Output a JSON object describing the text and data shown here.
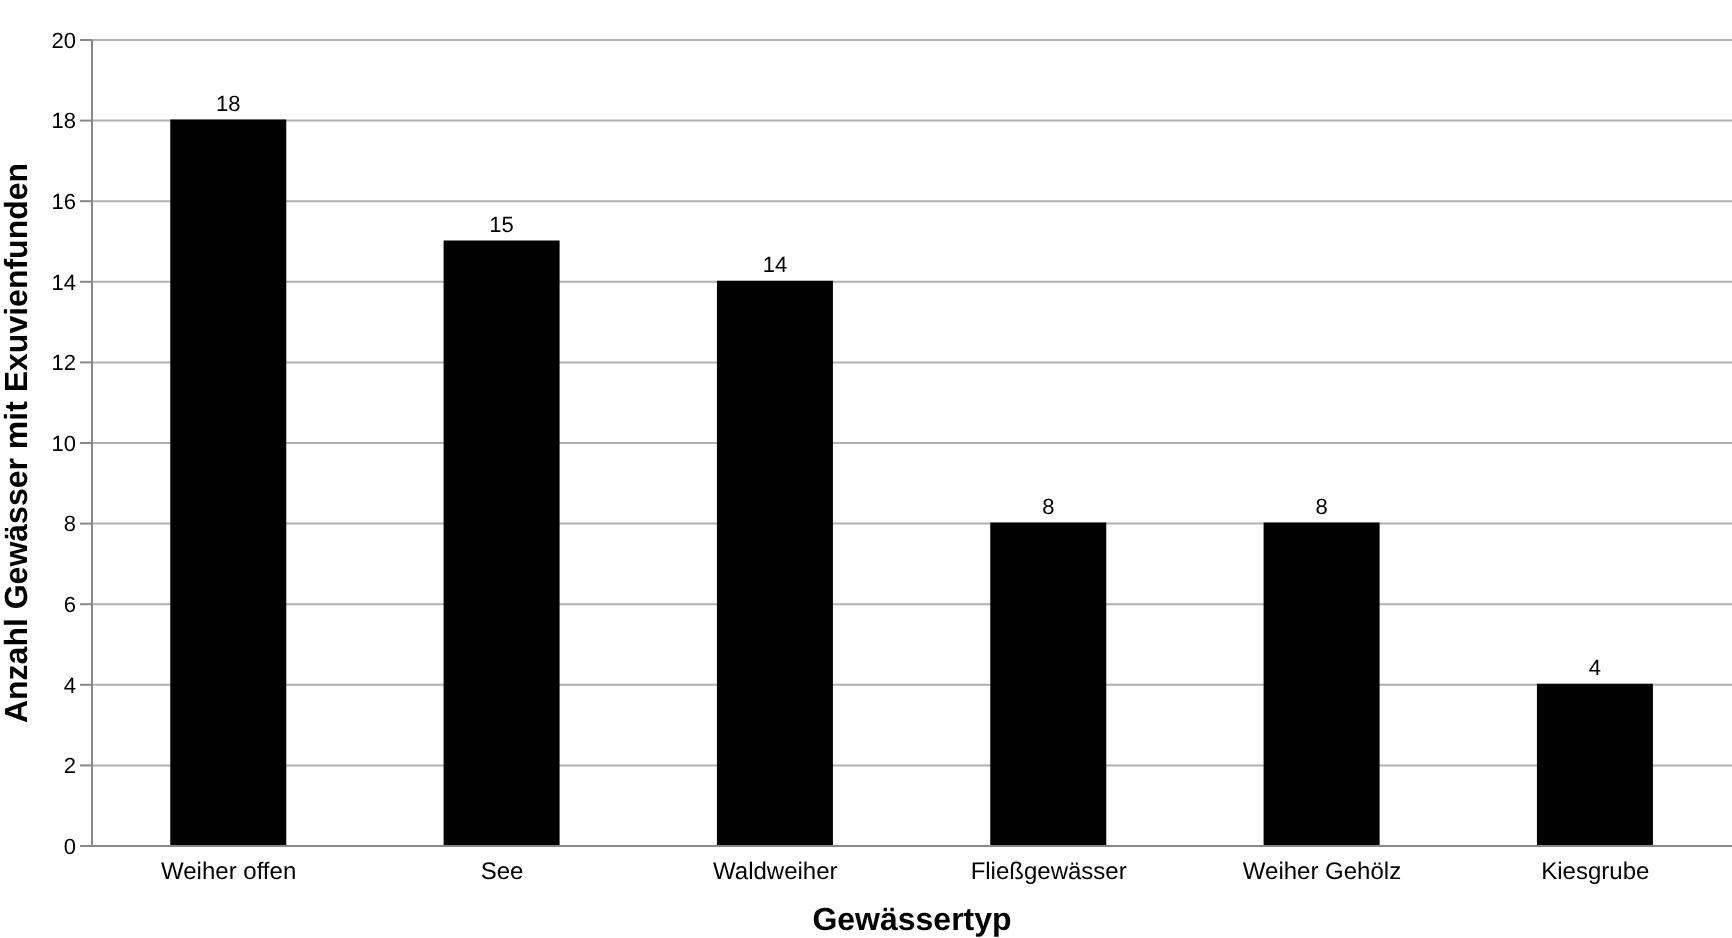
{
  "chart_data": {
    "type": "bar",
    "xlabel": "Gewässertyp",
    "ylabel": "Anzahl Gewässer mit Exuvienfunden",
    "categories": [
      "Weiher offen",
      "See",
      "Waldweiher",
      "Fließgewässer",
      "Weiher Gehölz",
      "Kiesgrube"
    ],
    "values": [
      18,
      15,
      14,
      8,
      8,
      4
    ],
    "color": "#000000",
    "data_labels": true,
    "ylim": [
      0,
      20
    ],
    "yticks": [
      0,
      2,
      4,
      6,
      8,
      10,
      12,
      14,
      16,
      18,
      20
    ],
    "grid": "y"
  }
}
